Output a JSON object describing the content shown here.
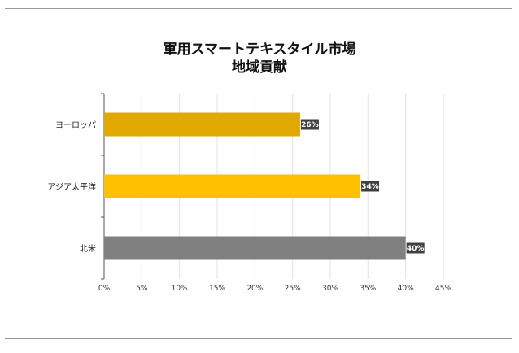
{
  "chart_data": {
    "type": "bar",
    "orientation": "horizontal",
    "title": "軍用スマートテキスタイル市場",
    "subtitle": "地域貢献",
    "xlabel": "",
    "ylabel": "",
    "categories": [
      "ヨーロッパ",
      "アジア太平洋",
      "北米"
    ],
    "values": [
      26,
      34,
      40
    ],
    "data_labels": [
      "26%",
      "34%",
      "40%"
    ],
    "colors": [
      "#E0A800",
      "#FFC000",
      "#808080"
    ],
    "xlim": [
      0,
      45
    ],
    "x_ticks": [
      "0%",
      "5%",
      "10%",
      "15%",
      "20%",
      "25%",
      "30%",
      "35%",
      "40%",
      "45%"
    ],
    "grid": true,
    "legend": "none",
    "label_box_color": "#404040"
  }
}
